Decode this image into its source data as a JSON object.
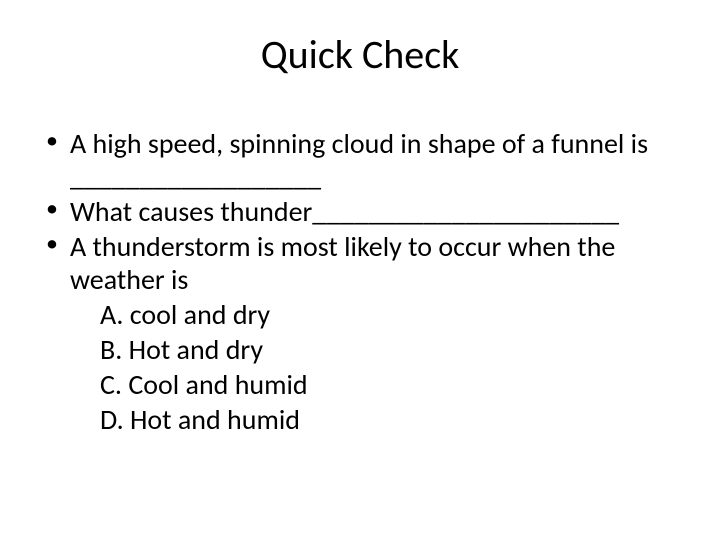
{
  "colors": {
    "background": "#ffffff",
    "text": "#000000"
  },
  "typography": {
    "title_fontsize": 40,
    "body_fontsize": 28,
    "font_family": "Calibri"
  },
  "title": "Quick Check",
  "bullets": {
    "b1": "A high speed, spinning cloud in shape of a funnel is __________________",
    "b2": "What causes thunder______________________",
    "b3": "A thunderstorm is most likely to occur when the weather is"
  },
  "options": {
    "a": "A. cool and dry",
    "b": "B. Hot and dry",
    "c": "C. Cool and humid",
    "d": "D. Hot and humid"
  }
}
